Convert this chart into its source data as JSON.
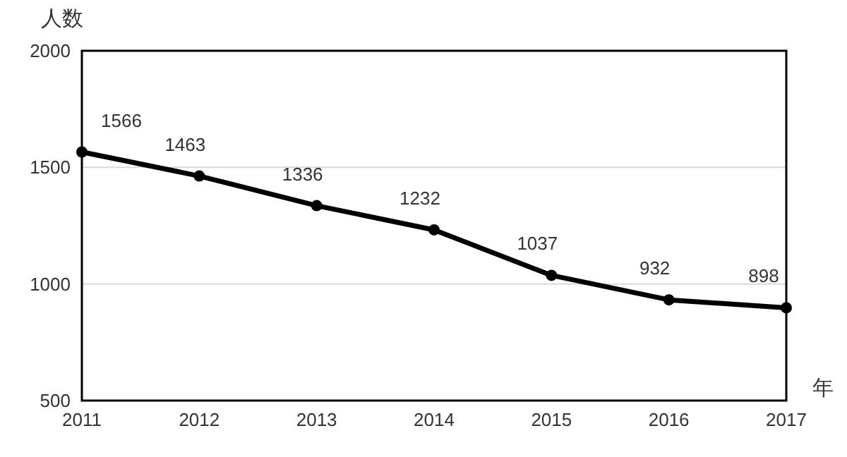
{
  "chart_data": {
    "type": "line",
    "ylabel": "人数",
    "xlabel": "年",
    "x": [
      2011,
      2012,
      2013,
      2014,
      2015,
      2016,
      2017
    ],
    "series": [
      {
        "color": "#000000",
        "values": [
          1566,
          1463,
          1336,
          1232,
          1037,
          932,
          898
        ]
      }
    ],
    "xlim": [
      2011,
      2017
    ],
    "xticks": [
      2011,
      2012,
      2013,
      2014,
      2015,
      2016,
      2017
    ],
    "ylim": [
      500,
      2000
    ],
    "yticks": [
      500,
      1000,
      1500,
      2000
    ],
    "grid": "y",
    "marker": "circle",
    "line_style": "solid",
    "data_labels": true
  }
}
